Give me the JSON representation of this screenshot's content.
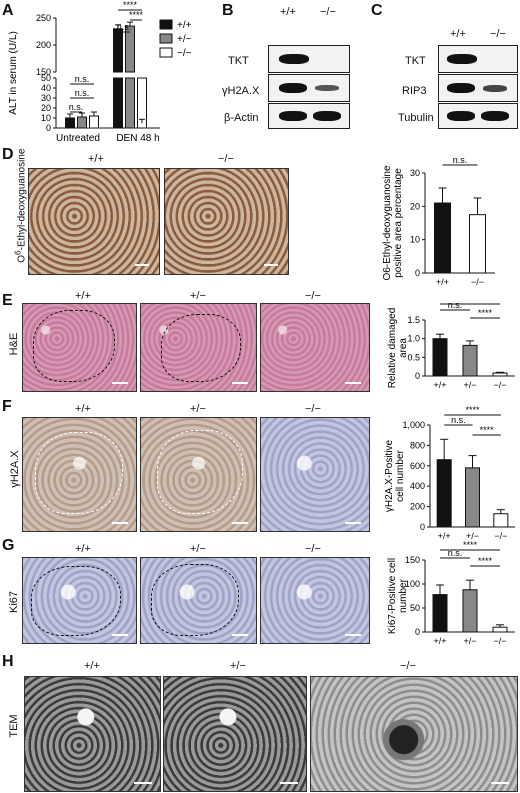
{
  "panels": {
    "A": "A",
    "B": "B",
    "C": "C",
    "D": "D",
    "E": "E",
    "F": "F",
    "G": "G",
    "H": "H"
  },
  "genotypes": {
    "wt": "+/+",
    "het": "+/−",
    "ko": "−/−"
  },
  "panelB": {
    "bands": [
      "TKT",
      "γH2A.X",
      "β-Actin"
    ]
  },
  "panelC": {
    "bands": [
      "TKT",
      "RIP3",
      "Tubulin"
    ]
  },
  "panelD": {
    "ylabel": "O6-Ethyl-deoxyguanosine",
    "chart_ylabel": "O6-Ethyl-deoxyguanosine positive area percentage"
  },
  "panelE": {
    "row_label": "H&E"
  },
  "panelF": {
    "row_label": "γH2A.X"
  },
  "panelG": {
    "row_label": "Ki67"
  },
  "panelH": {
    "row_label": "TEM"
  },
  "sig": {
    "ns": "n.s.",
    "stars": "****"
  },
  "colors": {
    "wt": "#111111",
    "het": "#888888",
    "ko": "#ffffff"
  },
  "chart_data": [
    {
      "id": "A",
      "type": "bar",
      "categories": [
        "Untreated",
        "DEN 48 h"
      ],
      "series": [
        {
          "name": "+/+",
          "values": [
            10,
            230
          ]
        },
        {
          "name": "+/−",
          "values": [
            11,
            235
          ]
        },
        {
          "name": "−/−",
          "values": [
            12,
            55
          ]
        }
      ],
      "ylabel": "ALT in serum (U/L)",
      "ylim_lower": [
        0,
        50
      ],
      "ylim_upper": [
        150,
        250
      ],
      "yticks": [
        "0",
        "10",
        "20",
        "30",
        "40",
        "50",
        "150",
        "200",
        "250"
      ],
      "legend_placement": "top-right"
    },
    {
      "id": "D",
      "type": "bar",
      "categories": [
        "+/+",
        "−/−"
      ],
      "values": [
        21,
        17.5
      ],
      "ylabel": "O6-Ethyl-deoxyguanosine positive area percentage",
      "ylim": [
        0,
        30
      ],
      "yticks": [
        "0",
        "10",
        "20",
        "30"
      ]
    },
    {
      "id": "E",
      "type": "bar",
      "categories": [
        "+/+",
        "+/−",
        "−/−"
      ],
      "values": [
        1.0,
        0.82,
        0.08
      ],
      "ylabel": "Relative damaged area",
      "ylim": [
        0,
        1.5
      ],
      "yticks": [
        "0",
        "0.5",
        "1.0",
        "1.5"
      ]
    },
    {
      "id": "F",
      "type": "bar",
      "categories": [
        "+/+",
        "+/−",
        "−/−"
      ],
      "values": [
        660,
        580,
        130
      ],
      "ylabel": "γH2A.X-Positive cell number",
      "ylim": [
        0,
        1000
      ],
      "yticks": [
        "0",
        "200",
        "400",
        "600",
        "800",
        "1,000"
      ]
    },
    {
      "id": "G",
      "type": "bar",
      "categories": [
        "+/+",
        "+/−",
        "−/−"
      ],
      "values": [
        78,
        88,
        10
      ],
      "ylabel": "Ki67-Positive cell number",
      "ylim": [
        0,
        150
      ],
      "yticks": [
        "0",
        "50",
        "100",
        "150"
      ]
    }
  ]
}
